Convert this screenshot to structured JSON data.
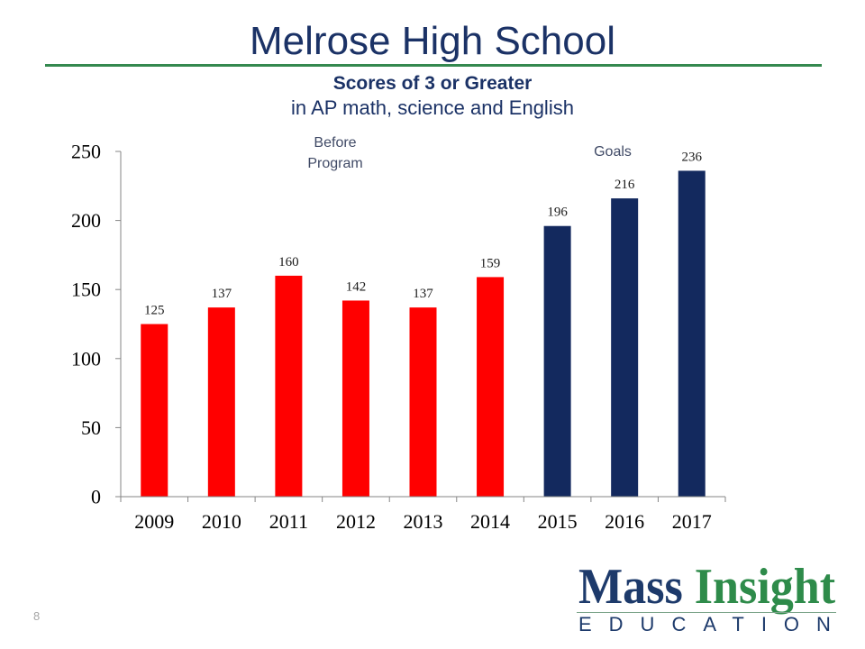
{
  "slide": {
    "title": "Melrose High School",
    "page_number": "8"
  },
  "chart_data": {
    "type": "bar",
    "title": "Scores of 3 or Greater",
    "subtitle": "in AP math, science and English",
    "xlabel": "",
    "ylabel": "",
    "categories": [
      "2009",
      "2010",
      "2011",
      "2012",
      "2013",
      "2014",
      "2015",
      "2016",
      "2017"
    ],
    "values": [
      125,
      137,
      160,
      142,
      137,
      159,
      196,
      216,
      236
    ],
    "bar_colors": [
      "#ff0000",
      "#ff0000",
      "#ff0000",
      "#ff0000",
      "#ff0000",
      "#ff0000",
      "#13295e",
      "#13295e",
      "#13295e"
    ],
    "ylim": [
      0,
      250
    ],
    "yticks": [
      0,
      50,
      100,
      150,
      200,
      250
    ],
    "data_labels": true,
    "grid": false,
    "legend": "none",
    "annotations": [
      {
        "text": "Before Program"
      },
      {
        "text": "Goals"
      }
    ]
  },
  "logo": {
    "word1": "Mass",
    "word2": "Insight",
    "tagline": "EDUCATION"
  },
  "colors": {
    "title": "#1b3266",
    "title_rule": "#34894f",
    "logo_navy": "#1d3a6b",
    "logo_green": "#2e8b4a"
  }
}
